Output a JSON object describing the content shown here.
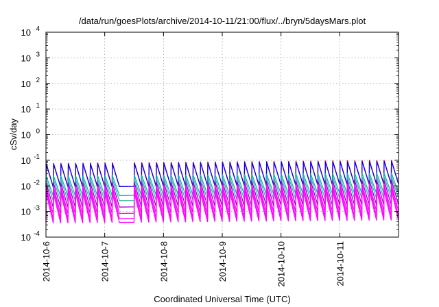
{
  "chart_data": {
    "type": "line",
    "title": "/data/run/goesPlots/archive/2014-10-11/21:00/flux/../bryn/5daysMars.plot",
    "xlabel": "Coordinated Universal Time (UTC)",
    "ylabel": "cSv/day",
    "x_scale": "time",
    "y_scale": "log",
    "xlim": [
      "2014-10-06",
      "2014-10-12"
    ],
    "ylim": [
      0.0001,
      10000
    ],
    "grid": true,
    "x_ticks": [
      "2014-10-6",
      "2014-10-7",
      "2014-10-8",
      "2014-10-9",
      "2014-10-10",
      "2014-10-11"
    ],
    "y_ticks": [
      {
        "base": "10",
        "exp": "-4"
      },
      {
        "base": "10",
        "exp": "-3"
      },
      {
        "base": "10",
        "exp": "-2"
      },
      {
        "base": "10",
        "exp": "-1"
      },
      {
        "base": "10",
        "exp": "0"
      },
      {
        "base": "10",
        "exp": "1"
      },
      {
        "base": "10",
        "exp": "2"
      },
      {
        "base": "10",
        "exp": "3"
      },
      {
        "base": "10",
        "exp": "4"
      }
    ],
    "pattern": {
      "sawtooth_period_days": 0.125,
      "gap_start": "2014-10-07T06:00",
      "gap_end": "2014-10-07T10:00",
      "gap_min_log10": -3.8
    },
    "series": [
      {
        "color": "#ff0000",
        "peak_log10": -1.12,
        "trough_log10": -2.05
      },
      {
        "color": "#0000ff",
        "peak_log10": -1.15,
        "trough_log10": -2.05
      },
      {
        "color": "#00b8b8",
        "peak_log10": -1.62,
        "trough_log10": -2.4
      },
      {
        "color": "#40b0a0",
        "peak_log10": -1.75,
        "trough_log10": -2.6
      },
      {
        "color": "#9400d3",
        "peak_log10": -1.9,
        "trough_log10": -2.85
      },
      {
        "color": "#ff00ff",
        "peak_log10": -2.05,
        "trough_log10": -3.1
      },
      {
        "color": "#ff00ff",
        "peak_log10": -2.15,
        "trough_log10": -3.3
      },
      {
        "color": "#ff00ff",
        "peak_log10": -2.3,
        "trough_log10": -3.45
      }
    ]
  }
}
